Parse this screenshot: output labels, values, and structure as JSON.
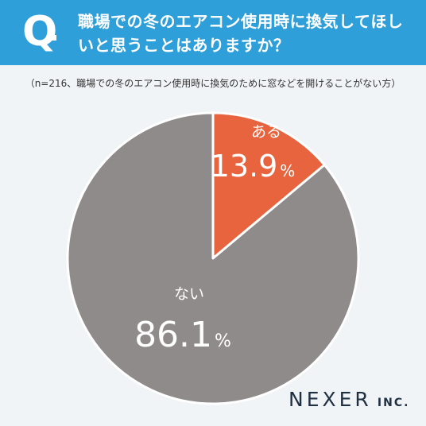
{
  "header": {
    "q_label": "Q",
    "question": "職場での冬のエアコン使用時に換気してほしいと思うことはありますか？"
  },
  "note": "（n=216、職場での冬のエアコン使用時に換気のために窓などを開けることがない方）",
  "logo": {
    "main": "NEXER",
    "sub": "INC."
  },
  "colors": {
    "header": "#2e9fd9",
    "yes": "#e7643f",
    "no": "#908b8b"
  },
  "chart_data": {
    "type": "pie",
    "title": "",
    "slices": [
      {
        "label": "ある",
        "value": 13.9,
        "display": "13.9",
        "unit": "%",
        "color": "#e7643f"
      },
      {
        "label": "ない",
        "value": 86.1,
        "display": "86.1",
        "unit": "%",
        "color": "#908b8b"
      }
    ]
  }
}
